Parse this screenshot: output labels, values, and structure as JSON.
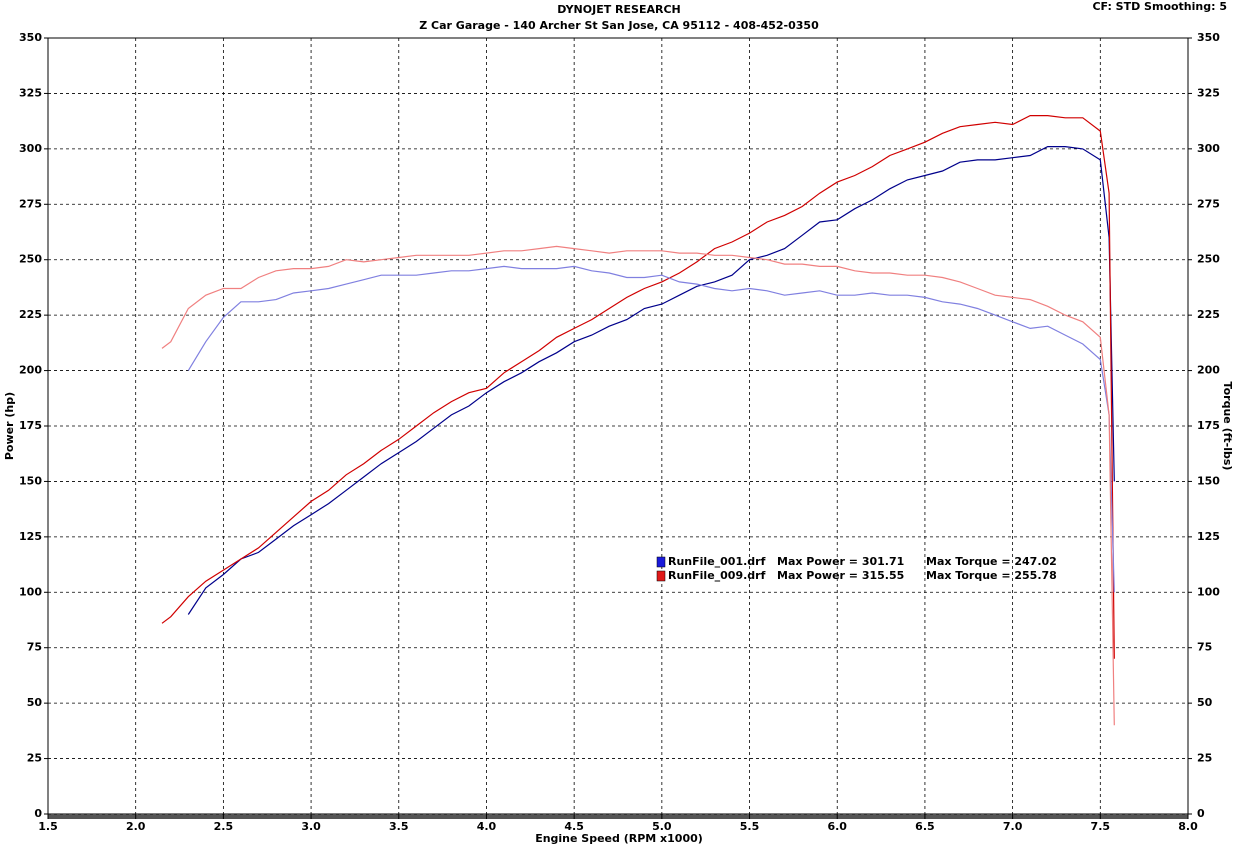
{
  "chart_data": {
    "type": "line",
    "title": "DYNOJET RESEARCH",
    "subtitle": "Z Car Garage - 140 Archer St San Jose, CA 95112 - 408-452-0350",
    "settings_text": "CF: STD  Smoothing: 5",
    "y_label": "Power (hp)",
    "y2_label": "Torque (ft-lbs)",
    "x_label": "Engine Speed (RPM x1000)",
    "grid": true,
    "xlim": [
      1.5,
      8.0
    ],
    "xticks": [
      1.5,
      {
        "value": 2,
        "label": "2.0"
      },
      2.5,
      {
        "value": 3,
        "label": "3.0"
      },
      3.5,
      {
        "value": 4,
        "label": "4.0"
      },
      4.5,
      {
        "value": 5,
        "label": "5.0"
      },
      5.5,
      {
        "value": 6,
        "label": "6.0"
      },
      6.5,
      {
        "value": 7,
        "label": "7.0"
      },
      7.5,
      {
        "value": 8,
        "label": "8.0"
      }
    ],
    "ylim": [
      0,
      350
    ],
    "yticks": [
      0,
      25,
      50,
      75,
      100,
      125,
      150,
      175,
      200,
      225,
      250,
      275,
      300,
      325,
      350
    ],
    "y2lim": [
      0,
      350
    ],
    "y2ticks": [
      0,
      25,
      50,
      75,
      100,
      125,
      150,
      175,
      200,
      225,
      250,
      275,
      300,
      325,
      350
    ],
    "legend": [
      {
        "name": "RunFile_001.drf",
        "power": "Max Power = 301.71",
        "torque": "Max Torque = 247.02",
        "color": "#1a1adb"
      },
      {
        "name": "RunFile_009.drf",
        "power": "Max Power = 315.55",
        "torque": "Max Torque = 255.78",
        "color": "#e01a1a"
      }
    ],
    "x": [
      2.15,
      2.2,
      2.3,
      2.4,
      2.5,
      2.6,
      2.7,
      2.8,
      2.9,
      3.0,
      3.1,
      3.2,
      3.3,
      3.4,
      3.5,
      3.6,
      3.7,
      3.8,
      3.9,
      4.0,
      4.1,
      4.2,
      4.3,
      4.4,
      4.5,
      4.6,
      4.7,
      4.8,
      4.9,
      5.0,
      5.1,
      5.2,
      5.3,
      5.4,
      5.5,
      5.6,
      5.7,
      5.8,
      5.9,
      6.0,
      6.1,
      6.2,
      6.3,
      6.4,
      6.5,
      6.6,
      6.7,
      6.8,
      6.9,
      7.0,
      7.1,
      7.2,
      7.3,
      7.4,
      7.5,
      7.55,
      7.58
    ],
    "series": [
      {
        "color": "#00008b",
        "values": [
          null,
          null,
          90,
          102,
          108,
          115,
          118,
          124,
          130,
          135,
          140,
          146,
          152,
          158,
          163,
          168,
          174,
          180,
          184,
          190,
          195,
          199,
          204,
          208,
          213,
          216,
          220,
          223,
          228,
          230,
          234,
          238,
          240,
          243,
          250,
          252,
          255,
          261,
          267,
          268,
          273,
          277,
          282,
          286,
          288,
          290,
          294,
          295,
          295,
          296,
          297,
          301,
          301,
          300,
          295,
          260,
          150
        ]
      },
      {
        "color": "#d00000",
        "values": [
          86,
          89,
          98,
          105,
          110,
          115,
          120,
          127,
          134,
          141,
          146,
          153,
          158,
          164,
          169,
          175,
          181,
          186,
          190,
          192,
          199,
          204,
          209,
          215,
          219,
          223,
          228,
          233,
          237,
          240,
          244,
          249,
          255,
          258,
          262,
          267,
          270,
          274,
          280,
          285,
          288,
          292,
          297,
          300,
          303,
          307,
          310,
          311,
          312,
          311,
          315,
          315,
          314,
          314,
          308,
          280,
          70
        ]
      },
      {
        "color": "#8080e0",
        "axis": "y2",
        "values": [
          null,
          null,
          200,
          213,
          224,
          231,
          231,
          232,
          235,
          236,
          237,
          239,
          241,
          243,
          243,
          243,
          244,
          245,
          245,
          246,
          247,
          246,
          246,
          246,
          247,
          245,
          244,
          242,
          242,
          243,
          240,
          239,
          237,
          236,
          237,
          236,
          234,
          235,
          236,
          234,
          234,
          235,
          234,
          234,
          233,
          231,
          230,
          228,
          225,
          222,
          219,
          220,
          216,
          212,
          205,
          180,
          100
        ]
      },
      {
        "color": "#f08080",
        "axis": "y2",
        "values": [
          210,
          213,
          228,
          234,
          237,
          237,
          242,
          245,
          246,
          246,
          247,
          250,
          249,
          250,
          251,
          252,
          252,
          252,
          252,
          253,
          254,
          254,
          255,
          256,
          255,
          254,
          253,
          254,
          254,
          254,
          253,
          253,
          252,
          252,
          251,
          250,
          248,
          248,
          247,
          247,
          245,
          244,
          244,
          243,
          243,
          242,
          240,
          237,
          234,
          233,
          232,
          229,
          225,
          222,
          215,
          180,
          40
        ]
      }
    ]
  }
}
